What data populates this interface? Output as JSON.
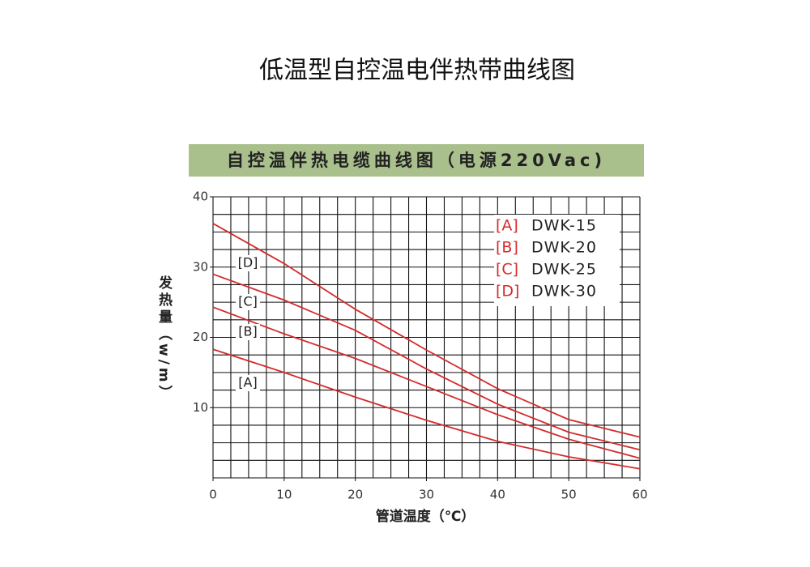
{
  "page_title": "低温型自控温电伴热带曲线图",
  "chart_data": {
    "type": "line",
    "title": "自控温伴热电缆曲线图（电源220Vac)",
    "x_label": "管道温度（℃）",
    "y_label": "发热量（w/m）",
    "x": [
      0,
      10,
      20,
      30,
      40,
      50,
      60
    ],
    "series": [
      {
        "name": "DWK-15",
        "code": "[A]",
        "color": "#d42b2b",
        "values": [
          18.3,
          15,
          11.5,
          8.2,
          5.2,
          3,
          1.3
        ]
      },
      {
        "name": "DWK-20",
        "code": "[B]",
        "color": "#d42b2b",
        "values": [
          24.3,
          20.5,
          17,
          13,
          9,
          5.5,
          2.8
        ]
      },
      {
        "name": "DWK-25",
        "code": "[C]",
        "color": "#d42b2b",
        "values": [
          29,
          25.3,
          21,
          15.5,
          10.5,
          6.5,
          4
        ]
      },
      {
        "name": "DWK-30",
        "code": "[D]",
        "color": "#d42b2b",
        "values": [
          36.2,
          30.5,
          24,
          18.2,
          12.7,
          8.3,
          5.8
        ]
      }
    ],
    "xlim": [
      0,
      60
    ],
    "ylim": [
      0,
      40
    ],
    "xticks": [
      0,
      10,
      20,
      30,
      40,
      50,
      60
    ],
    "yticks": [
      10,
      20,
      30,
      40
    ],
    "grid_step": 2.5,
    "legend": "upper right"
  }
}
